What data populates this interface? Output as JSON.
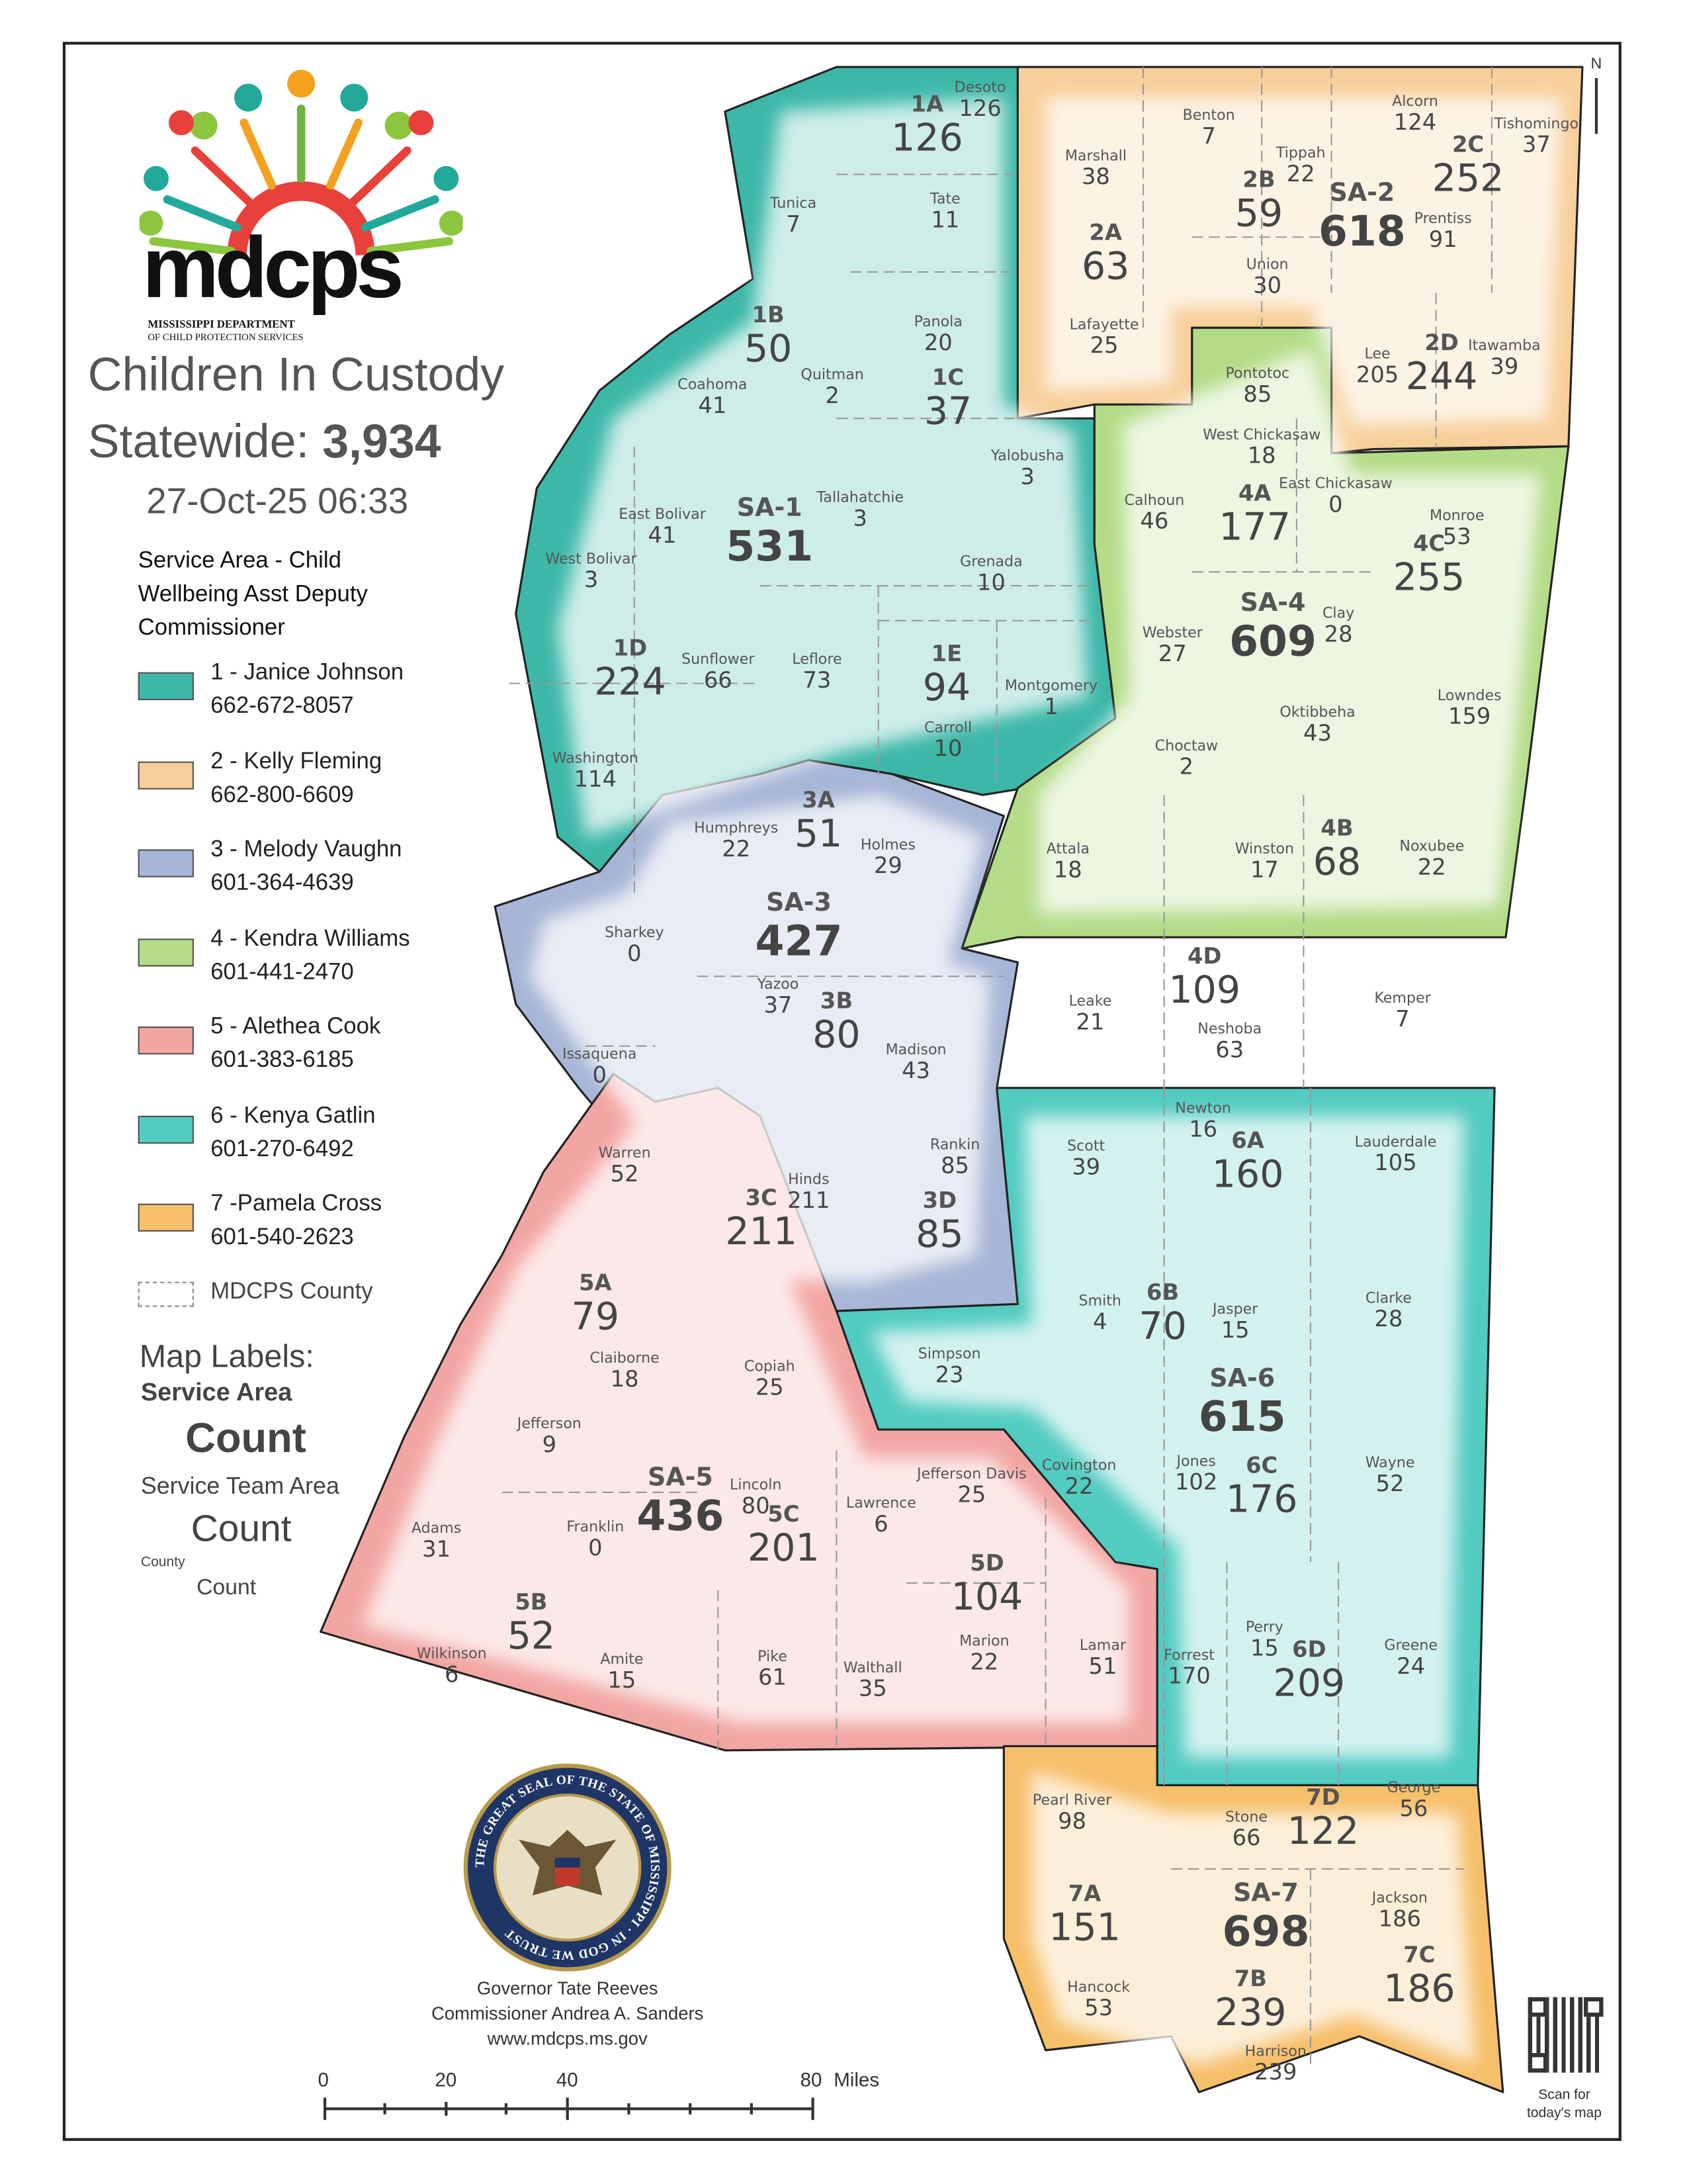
{
  "header": {
    "logo_text": "mdcps",
    "logo_subtitle_1": "MISSISSIPPI DEPARTMENT",
    "logo_subtitle_2": "OF CHILD PROTECTION SERVICES",
    "title": "Children In Custody",
    "statewide_label": "Statewide: ",
    "statewide_count": "3,934",
    "timestamp": "27-Oct-25 06:33"
  },
  "legend": {
    "heading": [
      "Service Area - Child",
      "Wellbeing Asst Deputy",
      "Commissioner"
    ],
    "items": [
      {
        "label": "1 - Janice Johnson",
        "phone": "662-672-8057",
        "color": "#3db8a8"
      },
      {
        "label": "2 - Kelly Fleming",
        "phone": "662-800-6609",
        "color": "#f7cf9a"
      },
      {
        "label": "3 - Melody Vaughn",
        "phone": "601-364-4639",
        "color": "#a7b6d6"
      },
      {
        "label": "4 - Kendra Williams",
        "phone": "601-441-2470",
        "color": "#b4dc88"
      },
      {
        "label": "5 - Alethea Cook",
        "phone": "601-383-6185",
        "color": "#f2a6a3"
      },
      {
        "label": "6 - Kenya Gatlin",
        "phone": "601-270-6492",
        "color": "#52cbc1"
      },
      {
        "label": "7 -Pamela Cross",
        "phone": "601-540-2623",
        "color": "#f6bf6a"
      }
    ],
    "county_label": "MDCPS County",
    "map_labels_heading": "Map Labels:",
    "service_area": "Service Area",
    "service_area_count": "Count",
    "service_team_area": "Service Team Area",
    "service_team_count": "Count",
    "county": "County",
    "county_count": "Count"
  },
  "service_areas": [
    {
      "code": "SA-1",
      "count": "531"
    },
    {
      "code": "SA-2",
      "count": "618"
    },
    {
      "code": "SA-3",
      "count": "427"
    },
    {
      "code": "SA-4",
      "count": "609"
    },
    {
      "code": "SA-5",
      "count": "436"
    },
    {
      "code": "SA-6",
      "count": "615"
    },
    {
      "code": "SA-7",
      "count": "698"
    }
  ],
  "team_areas": [
    {
      "code": "1A",
      "count": "126"
    },
    {
      "code": "1B",
      "count": "50"
    },
    {
      "code": "1C",
      "count": "37"
    },
    {
      "code": "1D",
      "count": "224"
    },
    {
      "code": "1E",
      "count": "94"
    },
    {
      "code": "2A",
      "count": "63"
    },
    {
      "code": "2B",
      "count": "59"
    },
    {
      "code": "2C",
      "count": "252"
    },
    {
      "code": "2D",
      "count": "244"
    },
    {
      "code": "3A",
      "count": "51"
    },
    {
      "code": "3B",
      "count": "80"
    },
    {
      "code": "3C",
      "count": "211"
    },
    {
      "code": "3D",
      "count": "85"
    },
    {
      "code": "4A",
      "count": "177"
    },
    {
      "code": "4B",
      "count": "68"
    },
    {
      "code": "4C",
      "count": "255"
    },
    {
      "code": "4D",
      "count": "109"
    },
    {
      "code": "5A",
      "count": "79"
    },
    {
      "code": "5B",
      "count": "52"
    },
    {
      "code": "5C",
      "count": "201"
    },
    {
      "code": "5D",
      "count": "104"
    },
    {
      "code": "6A",
      "count": "160"
    },
    {
      "code": "6B",
      "count": "70"
    },
    {
      "code": "6C",
      "count": "176"
    },
    {
      "code": "6D",
      "count": "209"
    },
    {
      "code": "7A",
      "count": "151"
    },
    {
      "code": "7B",
      "count": "239"
    },
    {
      "code": "7C",
      "count": "186"
    },
    {
      "code": "7D",
      "count": "122"
    }
  ],
  "counties": [
    {
      "name": "Desoto",
      "count": "126"
    },
    {
      "name": "Tunica",
      "count": "7"
    },
    {
      "name": "Tate",
      "count": "11"
    },
    {
      "name": "Coahoma",
      "count": "41"
    },
    {
      "name": "Quitman",
      "count": "2"
    },
    {
      "name": "Panola",
      "count": "20"
    },
    {
      "name": "Yalobusha",
      "count": "3"
    },
    {
      "name": "Tallahatchie",
      "count": "3"
    },
    {
      "name": "Grenada",
      "count": "10"
    },
    {
      "name": "East Bolivar",
      "count": "41"
    },
    {
      "name": "West Bolivar",
      "count": "3"
    },
    {
      "name": "Sunflower",
      "count": "66"
    },
    {
      "name": "Leflore",
      "count": "73"
    },
    {
      "name": "Carroll",
      "count": "10"
    },
    {
      "name": "Montgomery",
      "count": "1"
    },
    {
      "name": "Washington",
      "count": "114"
    },
    {
      "name": "Marshall",
      "count": "38"
    },
    {
      "name": "Benton",
      "count": "7"
    },
    {
      "name": "Tippah",
      "count": "22"
    },
    {
      "name": "Alcorn",
      "count": "124"
    },
    {
      "name": "Tishomingo",
      "count": "37"
    },
    {
      "name": "Prentiss",
      "count": "91"
    },
    {
      "name": "Union",
      "count": "30"
    },
    {
      "name": "Lafayette",
      "count": "25"
    },
    {
      "name": "Lee",
      "count": "205"
    },
    {
      "name": "Itawamba",
      "count": "39"
    },
    {
      "name": "Pontotoc",
      "count": "85"
    },
    {
      "name": "West Chickasaw",
      "count": "18"
    },
    {
      "name": "East Chickasaw",
      "count": "0"
    },
    {
      "name": "Calhoun",
      "count": "46"
    },
    {
      "name": "Monroe",
      "count": "53"
    },
    {
      "name": "Webster",
      "count": "27"
    },
    {
      "name": "Clay",
      "count": "28"
    },
    {
      "name": "Choctaw",
      "count": "2"
    },
    {
      "name": "Oktibbeha",
      "count": "43"
    },
    {
      "name": "Lowndes",
      "count": "159"
    },
    {
      "name": "Attala",
      "count": "18"
    },
    {
      "name": "Winston",
      "count": "17"
    },
    {
      "name": "Noxubee",
      "count": "22"
    },
    {
      "name": "Leake",
      "count": "21"
    },
    {
      "name": "Neshoba",
      "count": "63"
    },
    {
      "name": "Kemper",
      "count": "7"
    },
    {
      "name": "Humphreys",
      "count": "22"
    },
    {
      "name": "Holmes",
      "count": "29"
    },
    {
      "name": "Sharkey",
      "count": "0"
    },
    {
      "name": "Yazoo",
      "count": "37"
    },
    {
      "name": "Madison",
      "count": "43"
    },
    {
      "name": "Issaquena",
      "count": "0"
    },
    {
      "name": "Rankin",
      "count": "85"
    },
    {
      "name": "Hinds",
      "count": "211"
    },
    {
      "name": "Warren",
      "count": "52"
    },
    {
      "name": "Claiborne",
      "count": "18"
    },
    {
      "name": "Copiah",
      "count": "25"
    },
    {
      "name": "Jefferson",
      "count": "9"
    },
    {
      "name": "Adams",
      "count": "31"
    },
    {
      "name": "Franklin",
      "count": "0"
    },
    {
      "name": "Lincoln",
      "count": "80"
    },
    {
      "name": "Lawrence",
      "count": "6"
    },
    {
      "name": "Jefferson Davis",
      "count": "25"
    },
    {
      "name": "Marion",
      "count": "22"
    },
    {
      "name": "Lamar",
      "count": "51"
    },
    {
      "name": "Wilkinson",
      "count": "6"
    },
    {
      "name": "Amite",
      "count": "15"
    },
    {
      "name": "Pike",
      "count": "61"
    },
    {
      "name": "Walthall",
      "count": "35"
    },
    {
      "name": "Newton",
      "count": "16"
    },
    {
      "name": "Scott",
      "count": "39"
    },
    {
      "name": "Lauderdale",
      "count": "105"
    },
    {
      "name": "Smith",
      "count": "4"
    },
    {
      "name": "Jasper",
      "count": "15"
    },
    {
      "name": "Clarke",
      "count": "28"
    },
    {
      "name": "Simpson",
      "count": "23"
    },
    {
      "name": "Covington",
      "count": "22"
    },
    {
      "name": "Jones",
      "count": "102"
    },
    {
      "name": "Wayne",
      "count": "52"
    },
    {
      "name": "Forrest",
      "count": "170"
    },
    {
      "name": "Perry",
      "count": "15"
    },
    {
      "name": "Greene",
      "count": "24"
    },
    {
      "name": "Pearl River",
      "count": "98"
    },
    {
      "name": "Hancock",
      "count": "53"
    },
    {
      "name": "Stone",
      "count": "66"
    },
    {
      "name": "George",
      "count": "56"
    },
    {
      "name": "Jackson",
      "count": "186"
    },
    {
      "name": "Harrison",
      "count": "239"
    }
  ],
  "footer": {
    "seal_text": "THE GREAT SEAL OF THE STATE OF MISSISSIPPI · IN GOD WE TRUST",
    "governor": "Governor Tate Reeves",
    "commissioner": "Commissioner Andrea A. Sanders",
    "website": "www.mdcps.ms.gov",
    "scale_ticks": [
      "0",
      "20",
      "40",
      "80"
    ],
    "scale_unit": "Miles",
    "qr_caption_1": "Scan for",
    "qr_caption_2": "today's map",
    "north_label": "N"
  }
}
